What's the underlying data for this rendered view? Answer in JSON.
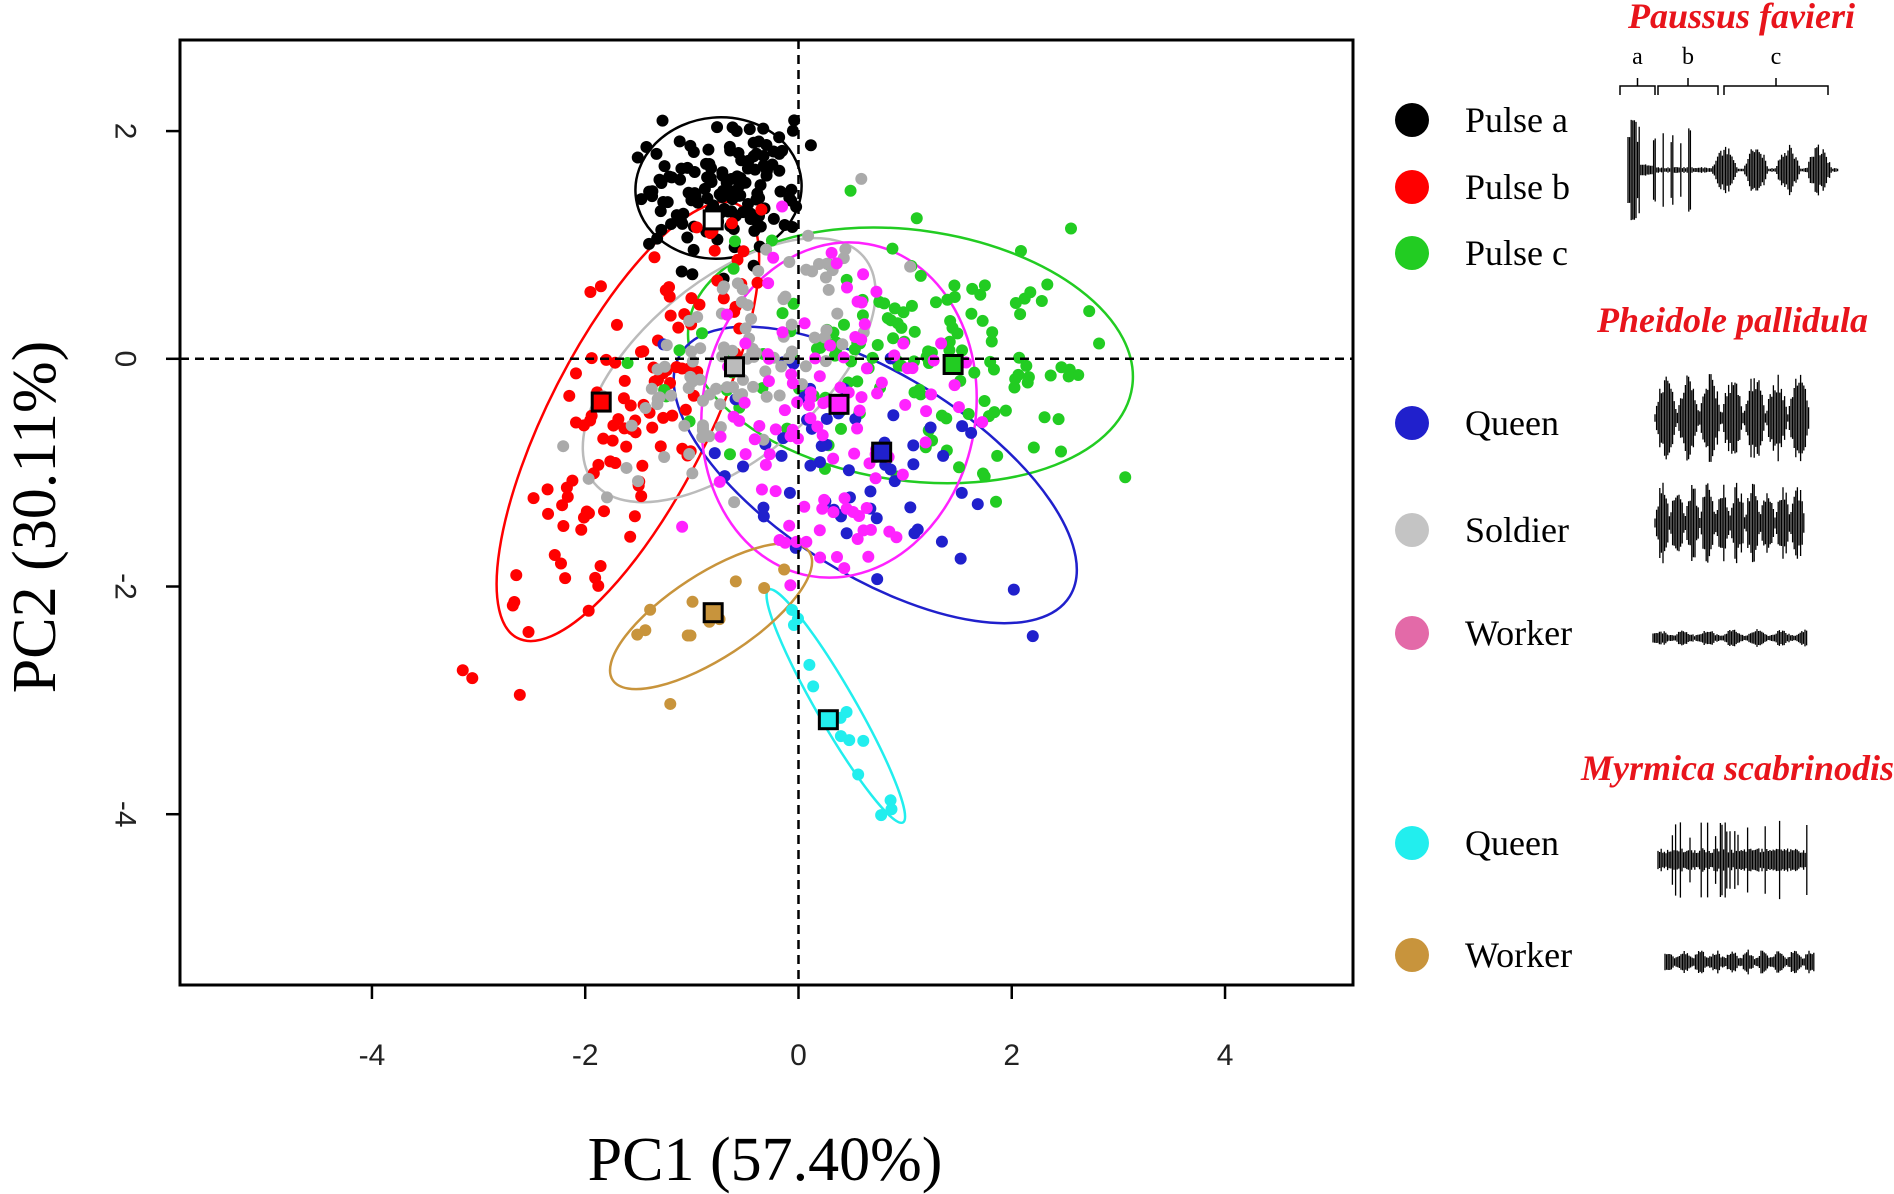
{
  "chart_data": {
    "type": "scatter",
    "xlabel": "PC1 (57.40%)",
    "ylabel": "PC2 (30.11%)",
    "xlim": [
      -5.8,
      5.2
    ],
    "ylim": [
      -5.5,
      2.8
    ],
    "xticks": [
      -4,
      -2,
      0,
      2,
      4
    ],
    "yticks": [
      2,
      0,
      -2,
      -4
    ],
    "xtick_labels": [
      "-4",
      "-2",
      "0",
      "2",
      "4"
    ],
    "ytick_labels": [
      "2",
      "0",
      "-2",
      "-4"
    ],
    "reference_lines": {
      "x": 0,
      "y": 0,
      "style": "dashed"
    },
    "grid": false,
    "legend_position": "right",
    "groups": [
      {
        "species": "Paussus favieri",
        "segment_labels": [
          "a",
          "b",
          "c"
        ],
        "series": [
          {
            "name": "Pulse a",
            "color": "#000000",
            "centroid": [
              -0.8,
              1.22
            ],
            "ellipse": {
              "cx": -0.75,
              "cy": 1.5,
              "rx": 0.78,
              "ry": 0.62,
              "angle": 5
            }
          },
          {
            "name": "Pulse b",
            "color": "#ff0000",
            "centroid": [
              -1.85,
              -0.38
            ],
            "ellipse": {
              "cx": -1.6,
              "cy": -0.55,
              "rx": 2.28,
              "ry": 0.7,
              "angle": 63
            }
          },
          {
            "name": "Pulse c",
            "color": "#22cc22",
            "centroid": [
              1.45,
              -0.05
            ],
            "ellipse": {
              "cx": 1.05,
              "cy": 0.03,
              "rx": 2.1,
              "ry": 1.1,
              "angle": -8
            }
          }
        ]
      },
      {
        "species": "Pheidole pallidula",
        "series": [
          {
            "name": "Queen",
            "color": "#2020cc",
            "centroid": [
              0.78,
              -0.82
            ],
            "ellipse": {
              "cx": 0.72,
              "cy": -1.02,
              "rx": 2.15,
              "ry": 0.88,
              "angle": -32
            }
          },
          {
            "name": "Soldier",
            "color": "#bbbbbb",
            "centroid": [
              -0.6,
              -0.07
            ],
            "ellipse": {
              "cx": -0.65,
              "cy": -0.1,
              "rx": 1.65,
              "ry": 0.78,
              "angle": 40
            }
          },
          {
            "name": "Worker",
            "color": "#ff22ff",
            "centroid": [
              0.38,
              -0.4
            ],
            "ellipse": {
              "cx": 0.38,
              "cy": -0.45,
              "rx": 1.58,
              "ry": 1.2,
              "angle": 80
            }
          }
        ]
      },
      {
        "species": "Myrmica scabrinodis",
        "series": [
          {
            "name": "Queen",
            "color": "#22eeee",
            "centroid": [
              0.28,
              -3.17
            ],
            "ellipse": {
              "cx": 0.35,
              "cy": -3.05,
              "rx": 1.26,
              "ry": 0.17,
              "angle": -60
            }
          },
          {
            "name": "Worker",
            "color": "#c8943c",
            "centroid": [
              -0.8,
              -2.23
            ],
            "ellipse": {
              "cx": -0.82,
              "cy": -2.26,
              "rx": 1.1,
              "ry": 0.37,
              "angle": 33
            }
          }
        ]
      }
    ]
  }
}
